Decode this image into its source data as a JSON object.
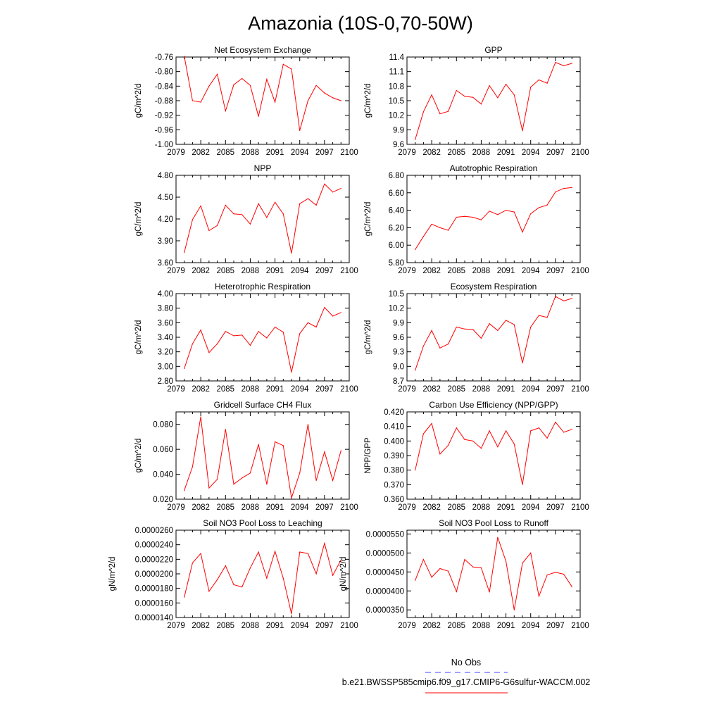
{
  "figure": {
    "title": "Amazonia (10S-0,70-50W)",
    "line_color": "#ff0000",
    "obs_color": "#4040ff"
  },
  "legend": {
    "obs_label": "No Obs",
    "model_label": "b.e21.BWSSP585cmip6.f09_g17.CMIP6-G6sulfur-WACCM.002"
  },
  "chart_data": [
    {
      "type": "line",
      "title": "Net Ecosystem Exchange",
      "ylabel": "gC/m^2/d",
      "xlim": [
        2079,
        2100
      ],
      "xticks": [
        2079,
        2082,
        2085,
        2088,
        2091,
        2094,
        2097,
        2100
      ],
      "ylim": [
        -1.0,
        -0.76
      ],
      "yticks": [
        "-0.76",
        "-0.80",
        "-0.84",
        "-0.88",
        "-0.92",
        "-0.96",
        "-1.00"
      ],
      "series": [
        {
          "x": [
            2080,
            2081,
            2082,
            2083,
            2084,
            2085,
            2086,
            2087,
            2088,
            2089,
            2090,
            2091,
            2092,
            2093,
            2094,
            2095,
            2096,
            2097,
            2098,
            2099
          ],
          "values": [
            -0.758,
            -0.88,
            -0.884,
            -0.84,
            -0.807,
            -0.908,
            -0.836,
            -0.819,
            -0.838,
            -0.923,
            -0.821,
            -0.884,
            -0.78,
            -0.793,
            -0.962,
            -0.88,
            -0.838,
            -0.859,
            -0.872,
            -0.88
          ]
        }
      ]
    },
    {
      "type": "line",
      "title": "GPP",
      "ylabel": "gC/m^2/d",
      "xlim": [
        2079,
        2100
      ],
      "xticks": [
        2079,
        2082,
        2085,
        2088,
        2091,
        2094,
        2097,
        2100
      ],
      "ylim": [
        9.6,
        11.4
      ],
      "yticks": [
        "11.4",
        "11.1",
        "10.8",
        "10.5",
        "10.2",
        "9.9",
        "9.6"
      ],
      "series": [
        {
          "x": [
            2080,
            2081,
            2082,
            2083,
            2084,
            2085,
            2086,
            2087,
            2088,
            2089,
            2090,
            2091,
            2092,
            2093,
            2094,
            2095,
            2096,
            2097,
            2098,
            2099
          ],
          "values": [
            9.7,
            10.27,
            10.62,
            10.23,
            10.28,
            10.71,
            10.59,
            10.57,
            10.43,
            10.81,
            10.56,
            10.84,
            10.62,
            9.88,
            10.78,
            10.93,
            10.86,
            11.29,
            11.22,
            11.27
          ]
        }
      ]
    },
    {
      "type": "line",
      "title": "NPP",
      "ylabel": "gC/m^2/d",
      "xlim": [
        2079,
        2100
      ],
      "xticks": [
        2079,
        2082,
        2085,
        2088,
        2091,
        2094,
        2097,
        2100
      ],
      "ylim": [
        3.6,
        4.8
      ],
      "yticks": [
        "4.80",
        "4.50",
        "4.20",
        "3.90",
        "3.60"
      ],
      "series": [
        {
          "x": [
            2080,
            2081,
            2082,
            2083,
            2084,
            2085,
            2086,
            2087,
            2088,
            2089,
            2090,
            2091,
            2092,
            2093,
            2094,
            2095,
            2096,
            2097,
            2098,
            2099
          ],
          "values": [
            3.74,
            4.19,
            4.38,
            4.04,
            4.11,
            4.39,
            4.27,
            4.26,
            4.13,
            4.41,
            4.22,
            4.43,
            4.27,
            3.73,
            4.41,
            4.48,
            4.39,
            4.68,
            4.57,
            4.62
          ]
        }
      ]
    },
    {
      "type": "line",
      "title": "Autotrophic Respiration",
      "ylabel": "gC/m^2/d",
      "xlim": [
        2079,
        2100
      ],
      "xticks": [
        2079,
        2082,
        2085,
        2088,
        2091,
        2094,
        2097,
        2100
      ],
      "ylim": [
        5.8,
        6.8
      ],
      "yticks": [
        "6.80",
        "6.60",
        "6.40",
        "6.20",
        "6.00",
        "5.80"
      ],
      "series": [
        {
          "x": [
            2080,
            2081,
            2082,
            2083,
            2084,
            2085,
            2086,
            2087,
            2088,
            2089,
            2090,
            2091,
            2092,
            2093,
            2094,
            2095,
            2096,
            2097,
            2098,
            2099
          ],
          "values": [
            5.95,
            6.1,
            6.24,
            6.2,
            6.17,
            6.32,
            6.33,
            6.32,
            6.29,
            6.39,
            6.35,
            6.4,
            6.38,
            6.15,
            6.36,
            6.43,
            6.46,
            6.61,
            6.65,
            6.66
          ]
        }
      ]
    },
    {
      "type": "line",
      "title": "Heterotrophic Respiration",
      "ylabel": "gC/m^2/d",
      "xlim": [
        2079,
        2100
      ],
      "xticks": [
        2079,
        2082,
        2085,
        2088,
        2091,
        2094,
        2097,
        2100
      ],
      "ylim": [
        2.8,
        4.0
      ],
      "yticks": [
        "4.00",
        "3.80",
        "3.60",
        "3.40",
        "3.20",
        "3.00",
        "2.80"
      ],
      "series": [
        {
          "x": [
            2080,
            2081,
            2082,
            2083,
            2084,
            2085,
            2086,
            2087,
            2088,
            2089,
            2090,
            2091,
            2092,
            2093,
            2094,
            2095,
            2096,
            2097,
            2098,
            2099
          ],
          "values": [
            2.97,
            3.31,
            3.5,
            3.19,
            3.31,
            3.48,
            3.42,
            3.43,
            3.29,
            3.48,
            3.39,
            3.54,
            3.47,
            2.92,
            3.45,
            3.6,
            3.54,
            3.81,
            3.69,
            3.74
          ]
        }
      ]
    },
    {
      "type": "line",
      "title": "Ecosystem Respiration",
      "ylabel": "gC/m^2/d",
      "xlim": [
        2079,
        2100
      ],
      "xticks": [
        2079,
        2082,
        2085,
        2088,
        2091,
        2094,
        2097,
        2100
      ],
      "ylim": [
        8.7,
        10.5
      ],
      "yticks": [
        "10.5",
        "10.2",
        "9.9",
        "9.6",
        "9.3",
        "9.0",
        "8.7"
      ],
      "series": [
        {
          "x": [
            2080,
            2081,
            2082,
            2083,
            2084,
            2085,
            2086,
            2087,
            2088,
            2089,
            2090,
            2091,
            2092,
            2093,
            2094,
            2095,
            2096,
            2097,
            2098,
            2099
          ],
          "values": [
            8.92,
            9.42,
            9.74,
            9.38,
            9.46,
            9.81,
            9.77,
            9.76,
            9.58,
            9.88,
            9.74,
            9.95,
            9.86,
            9.07,
            9.81,
            10.05,
            10.01,
            10.44,
            10.35,
            10.4
          ]
        }
      ]
    },
    {
      "type": "line",
      "title": "Gridcell Surface CH4 Flux",
      "ylabel": "gC/m^2/d",
      "xlim": [
        2079,
        2100
      ],
      "xticks": [
        2079,
        2082,
        2085,
        2088,
        2091,
        2094,
        2097,
        2100
      ],
      "ylim": [
        0.02,
        0.09
      ],
      "yticks": [
        "0.080",
        "0.060",
        "0.040",
        "0.020"
      ],
      "ytick_values": [
        0.08,
        0.06,
        0.04,
        0.02
      ],
      "series": [
        {
          "x": [
            2080,
            2081,
            2082,
            2083,
            2084,
            2085,
            2086,
            2087,
            2088,
            2089,
            2090,
            2091,
            2092,
            2093,
            2094,
            2095,
            2096,
            2097,
            2098,
            2099
          ],
          "values": [
            0.027,
            0.046,
            0.086,
            0.029,
            0.036,
            0.076,
            0.032,
            0.037,
            0.041,
            0.064,
            0.032,
            0.066,
            0.063,
            0.021,
            0.041,
            0.08,
            0.035,
            0.058,
            0.035,
            0.059
          ]
        }
      ]
    },
    {
      "type": "line",
      "title": "Carbon Use Efficiency (NPP/GPP)",
      "ylabel": "NPP/GPP",
      "xlim": [
        2079,
        2100
      ],
      "xticks": [
        2079,
        2082,
        2085,
        2088,
        2091,
        2094,
        2097,
        2100
      ],
      "ylim": [
        0.36,
        0.42
      ],
      "yticks": [
        "0.420",
        "0.410",
        "0.400",
        "0.390",
        "0.380",
        "0.370",
        "0.360"
      ],
      "series": [
        {
          "x": [
            2080,
            2081,
            2082,
            2083,
            2084,
            2085,
            2086,
            2087,
            2088,
            2089,
            2090,
            2091,
            2092,
            2093,
            2094,
            2095,
            2096,
            2097,
            2098,
            2099
          ],
          "values": [
            0.38,
            0.405,
            0.412,
            0.391,
            0.397,
            0.409,
            0.401,
            0.4,
            0.395,
            0.407,
            0.396,
            0.407,
            0.398,
            0.37,
            0.407,
            0.409,
            0.402,
            0.413,
            0.406,
            0.408
          ]
        }
      ]
    },
    {
      "type": "line",
      "title": "Soil NO3 Pool Loss to Leaching",
      "ylabel": "gN/m^2/d",
      "xlim": [
        2079,
        2100
      ],
      "xticks": [
        2079,
        2082,
        2085,
        2088,
        2091,
        2094,
        2097,
        2100
      ],
      "ylim": [
        1.4e-05,
        2.6e-05
      ],
      "yticks": [
        "0.0000260",
        "0.0000240",
        "0.0000220",
        "0.0000200",
        "0.0000180",
        "0.0000160",
        "0.0000140"
      ],
      "series": [
        {
          "x": [
            2080,
            2081,
            2082,
            2083,
            2084,
            2085,
            2086,
            2087,
            2088,
            2089,
            2090,
            2091,
            2092,
            2093,
            2094,
            2095,
            2096,
            2097,
            2098,
            2099
          ],
          "values": [
            1.68e-05,
            2.15e-05,
            2.28e-05,
            1.76e-05,
            1.92e-05,
            2.11e-05,
            1.85e-05,
            1.82e-05,
            2.08e-05,
            2.3e-05,
            1.94e-05,
            2.31e-05,
            1.94e-05,
            1.45e-05,
            2.3e-05,
            2.28e-05,
            2e-05,
            2.42e-05,
            1.98e-05,
            2.19e-05
          ]
        }
      ]
    },
    {
      "type": "line",
      "title": "Soil NO3 Pool Loss to Runoff",
      "ylabel": "gN/m^2/d",
      "xlim": [
        2079,
        2100
      ],
      "xticks": [
        2079,
        2082,
        2085,
        2088,
        2091,
        2094,
        2097,
        2100
      ],
      "ylim": [
        3.3e-05,
        5.6e-05
      ],
      "yticks": [
        "0.0000550",
        "0.0000500",
        "0.0000450",
        "0.0000400",
        "0.0000350"
      ],
      "ytick_values": [
        5.5e-05,
        5e-05,
        4.5e-05,
        4e-05,
        3.5e-05
      ],
      "series": [
        {
          "x": [
            2080,
            2081,
            2082,
            2083,
            2084,
            2085,
            2086,
            2087,
            2088,
            2089,
            2090,
            2091,
            2092,
            2093,
            2094,
            2095,
            2096,
            2097,
            2098,
            2099
          ],
          "values": [
            4.28e-05,
            4.83e-05,
            4.36e-05,
            4.59e-05,
            4.52e-05,
            3.98e-05,
            4.83e-05,
            4.63e-05,
            4.61e-05,
            3.97e-05,
            5.41e-05,
            4.78e-05,
            3.5e-05,
            4.73e-05,
            5e-05,
            3.86e-05,
            4.42e-05,
            4.49e-05,
            4.44e-05,
            4.11e-05
          ]
        }
      ]
    }
  ]
}
